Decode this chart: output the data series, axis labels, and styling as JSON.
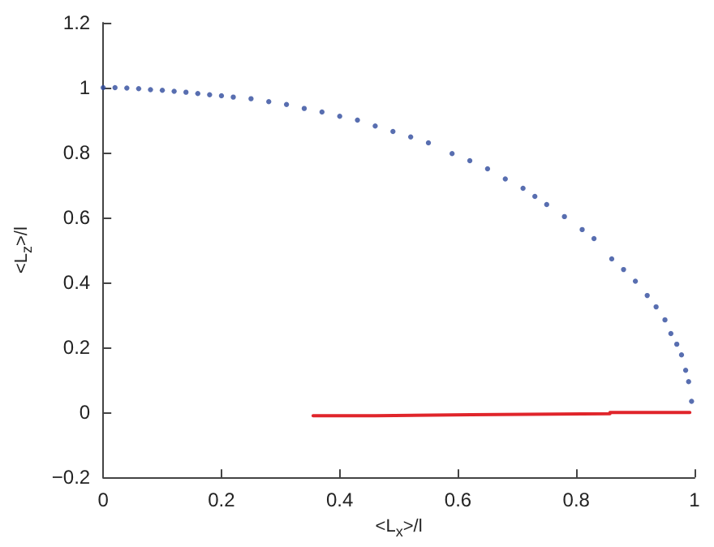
{
  "chart_data": {
    "type": "scatter",
    "xlabel": "<L$_{x}$>/l",
    "ylabel": "<L$_{z}$>/l",
    "xlim": [
      0,
      1
    ],
    "ylim": [
      -0.2,
      1.2
    ],
    "xticks": [
      0,
      0.2,
      0.4,
      0.6,
      0.8,
      1
    ],
    "yticks": [
      {
        "value": -0.2,
        "label": "−0.2"
      },
      0,
      0.2,
      0.4,
      0.6,
      0.8,
      1,
      1.2
    ],
    "grid": false,
    "series": [
      {
        "color": "#2e4a9c",
        "marker": "circle",
        "x": [
          0,
          0.02,
          0.04,
          0.06,
          0.08,
          0.1,
          0.12,
          0.14,
          0.16,
          0.18,
          0.2,
          0.22,
          0.25,
          0.28,
          0.31,
          0.34,
          0.37,
          0.4,
          0.43,
          0.46,
          0.49,
          0.52,
          0.55,
          0.59,
          0.62,
          0.65,
          0.68,
          0.71,
          0.73,
          0.75,
          0.78,
          0.81,
          0.83,
          0.86,
          0.88,
          0.9,
          0.92,
          0.935,
          0.95,
          0.96,
          0.97,
          0.978,
          0.985,
          0.99,
          0.995
        ],
        "values": [
          1,
          1,
          0.999,
          0.997,
          0.994,
          0.992,
          0.989,
          0.986,
          0.982,
          0.978,
          0.975,
          0.971,
          0.966,
          0.957,
          0.948,
          0.936,
          0.925,
          0.912,
          0.9,
          0.882,
          0.865,
          0.848,
          0.83,
          0.797,
          0.775,
          0.75,
          0.719,
          0.69,
          0.665,
          0.64,
          0.603,
          0.563,
          0.535,
          0.473,
          0.44,
          0.404,
          0.36,
          0.325,
          0.285,
          0.243,
          0.21,
          0.177,
          0.13,
          0.095,
          0.034
        ]
      },
      {
        "type": "line",
        "color": "#e0252b",
        "marker": "none",
        "x": [
          0.355,
          0.46,
          0.46,
          0.622,
          0.622,
          0.857,
          0.857,
          0.992
        ],
        "values": [
          -0.01,
          -0.01,
          -0.007,
          -0.007,
          -0.004,
          -0.004,
          0,
          0
        ]
      }
    ]
  }
}
